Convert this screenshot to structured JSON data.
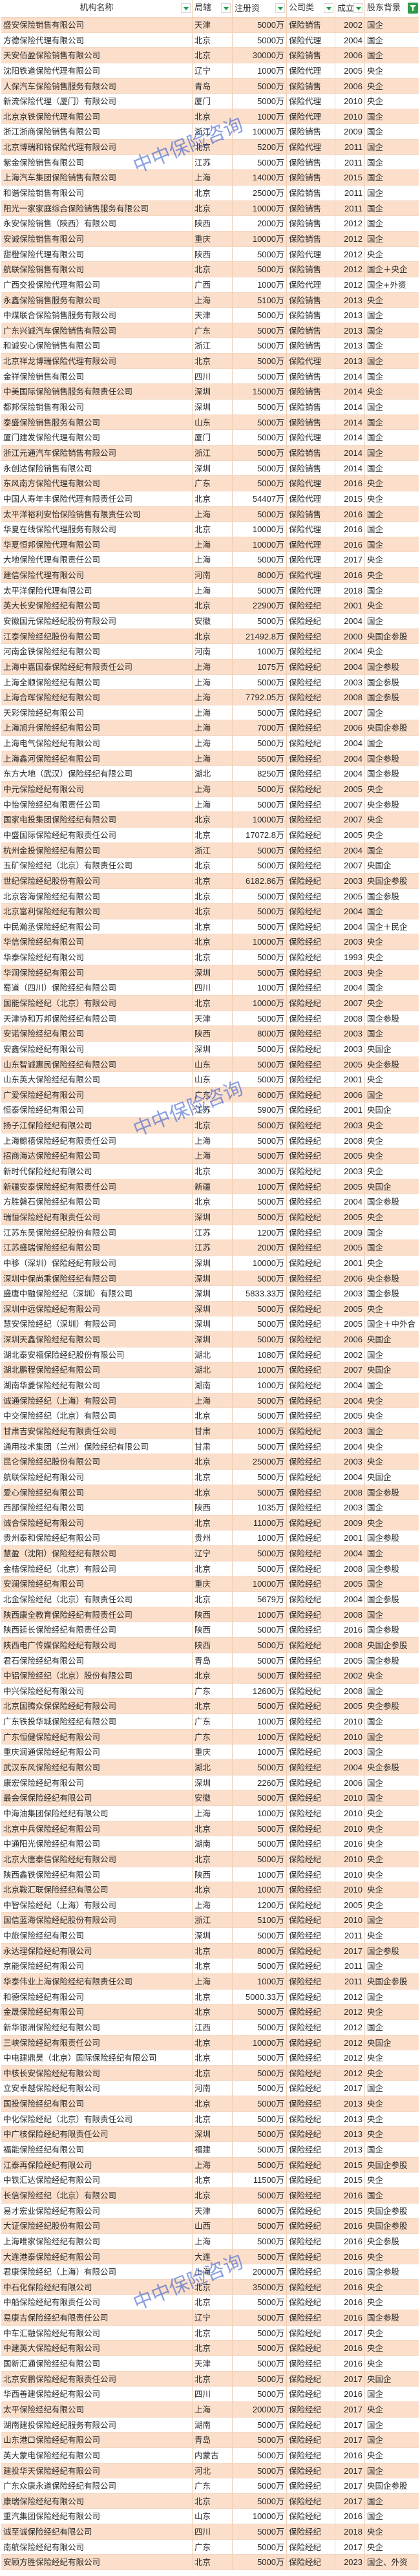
{
  "colors": {
    "row_alt": "#fbdfcb",
    "filter_accent": "#2f9a48",
    "watermark": "#2850c8"
  },
  "header": [
    "机构名称",
    "局辖",
    "注册资",
    "公司类",
    "成立",
    "股东背景"
  ],
  "watermark": "中中保险咨询",
  "rows": [
    [
      "盛安保险销售有限公司",
      "天津",
      "5000万",
      "保险销售",
      "2002",
      "国企"
    ],
    [
      "方德保险代理有限公司",
      "北京",
      "5000万",
      "保险代理",
      "2004",
      "国企"
    ],
    [
      "天安佰盈保险销售有限公司",
      "北京",
      "30000万",
      "保险销售",
      "2006",
      "国企"
    ],
    [
      "沈阳铁道保险代理有限公司",
      "辽宁",
      "1000万",
      "保险代理",
      "2005",
      "央企"
    ],
    [
      "人保汽车保险销售服务有限公司",
      "青岛",
      "5000万",
      "保险销售",
      "2006",
      "央企"
    ],
    [
      "新流保险代理（厦门）有限公司",
      "厦门",
      "5000万",
      "保险代理",
      "2010",
      "央企"
    ],
    [
      "北京京铁保险代理有限公司",
      "北京",
      "1000万",
      "保险代理",
      "2010",
      "国企"
    ],
    [
      "浙江浙商保险销售有限公司",
      "浙江",
      "10000万",
      "保险销售",
      "2009",
      "国企"
    ],
    [
      "北京博瑞和铭保险代理有限公司",
      "北京",
      "5200万",
      "保险代理",
      "2011",
      "国企"
    ],
    [
      "紫金保险销售有限公司",
      "江苏",
      "5000万",
      "保险销售",
      "2011",
      "国企"
    ],
    [
      "上海汽车集团保险销售有限公司",
      "上海",
      "14000万",
      "保险销售",
      "2015",
      "国企"
    ],
    [
      "和谐保险销售有限公司",
      "北京",
      "25000万",
      "保险销售",
      "2011",
      "国企"
    ],
    [
      "阳光一家家庭综合保险销售服务有限公司",
      "北京",
      "10000万",
      "保险销售",
      "2011",
      "国企"
    ],
    [
      "永安保险销售（陕西）有限公司",
      "陕西",
      "2000万",
      "保险销售",
      "2012",
      "国企"
    ],
    [
      "安诚保险销售有限公司",
      "重庆",
      "10000万",
      "保险销售",
      "2012",
      "国企"
    ],
    [
      "甜橙保险代理有限公司",
      "陕西",
      "5000万",
      "保险代理",
      "2012",
      "央企"
    ],
    [
      "航联保险销售有限公司",
      "北京",
      "5000万",
      "保险销售",
      "2012",
      "国企＋央企"
    ],
    [
      "广西交投保险代理有限公司",
      "广西",
      "1000万",
      "保险代理",
      "2012",
      "国企+外资"
    ],
    [
      "永鑫保险销售服务有限公司",
      "上海",
      "5100万",
      "保险销售",
      "2013",
      "央企"
    ],
    [
      "中煤联合保险销售服务有限公司",
      "天津",
      "5000万",
      "保险销售",
      "2013",
      "国企"
    ],
    [
      "广东兴诚汽车保险销售有限公司",
      "广东",
      "5000万",
      "保险销售",
      "2013",
      "国企"
    ],
    [
      "和诚安心保险销售有限公司",
      "浙江",
      "5000万",
      "保险销售",
      "2013",
      "国企"
    ],
    [
      "北京祥龙博瑞保险代理有限公司",
      "北京",
      "5000万",
      "保险代理",
      "2013",
      "国企"
    ],
    [
      "金祥保险销售有限公司",
      "四川",
      "5000万",
      "保险销售",
      "2014",
      "国企"
    ],
    [
      "中美国际保险销售服务有限责任公司",
      "深圳",
      "15000万",
      "保险销售",
      "2014",
      "央企"
    ],
    [
      "都邦保险销售有限公司",
      "深圳",
      "5000万",
      "保险销售",
      "2014",
      "国企"
    ],
    [
      "泰盛保险销售服务有限公司",
      "山东",
      "5000万",
      "保险销售",
      "2014",
      "国企"
    ],
    [
      "厦门建发保险代理有限公司",
      "厦门",
      "5000万",
      "保险代理",
      "2014",
      "国企"
    ],
    [
      "浙江元通汽车保险销售有限公司",
      "浙江",
      "5000万",
      "保险销售",
      "2014",
      "国企"
    ],
    [
      "永创达保险销售有限公司",
      "深圳",
      "5000万",
      "保险销售",
      "2014",
      "国企"
    ],
    [
      "东风南方保险代理有限公司",
      "广东",
      "5000万",
      "保险代理",
      "2016",
      "央企"
    ],
    [
      "中国人寿年丰保险代理有限责任公司",
      "北京",
      "54407万",
      "保险代理",
      "2015",
      "央企"
    ],
    [
      "太平洋裕利安怡保险销售有限责任公司",
      "上海",
      "5000万",
      "保险销售",
      "2016",
      "国企"
    ],
    [
      "华夏在线保险代理服务有限公司",
      "北京",
      "10000万",
      "保险代理",
      "2016",
      "国企"
    ],
    [
      "华夏恒邦保险代理有限公司",
      "上海",
      "10000万",
      "保险代理",
      "2016",
      "国企"
    ],
    [
      "大地保险代理有限责任公司",
      "上海",
      "5000万",
      "保险代理",
      "2017",
      "央企"
    ],
    [
      "建信保险代理有限公司",
      "河南",
      "8000万",
      "保险代理",
      "2016",
      "央企"
    ],
    [
      "太平洋保险代理有限公司",
      "上海",
      "5000万",
      "保险代理",
      "2018",
      "国企"
    ],
    [
      "英大长安保险经纪有限公司",
      "北京",
      "22900万",
      "保险经纪",
      "2001",
      "央企"
    ],
    [
      "安徽国元保险经纪股份有限公司",
      "安徽",
      "5000万",
      "保险经纪",
      "2004",
      "国企"
    ],
    [
      "江泰保险经纪股份有限公司",
      "北京",
      "21492.8万",
      "保险经纪",
      "2000",
      "央国企参股"
    ],
    [
      "河南金铁保险经纪有限公司",
      "河南",
      "1000万",
      "保险经纪",
      "2004",
      "央企"
    ],
    [
      "上海中嘉国泰保险经纪有限责任公司",
      "上海",
      "1075万",
      "保险经纪",
      "2004",
      "国企参股"
    ],
    [
      "上海全顺保险经纪有限公司",
      "上海",
      "5000万",
      "保险经纪",
      "2003",
      "国企参股"
    ],
    [
      "上海合晖保险经纪有限公司",
      "上海",
      "7792.05万",
      "保险经纪",
      "2008",
      "国企参股"
    ],
    [
      "天彩保险经纪有限公司",
      "上海",
      "5000万",
      "保险经纪",
      "2007",
      "国企"
    ],
    [
      "上海旭升保险经纪有限公司",
      "上海",
      "7000万",
      "保险经纪",
      "2006",
      "央国企参股"
    ],
    [
      "上海电气保险经纪有限公司",
      "上海",
      "5000万",
      "保险经纪",
      "2004",
      "国企"
    ],
    [
      "上海鑫河保险经纪有限公司",
      "上海",
      "5500万",
      "保险经纪",
      "2004",
      "国企参股"
    ],
    [
      "东方大地（武汉）保险经纪有限公司",
      "湖北",
      "8250万",
      "保险经纪",
      "2004",
      "国企参股"
    ],
    [
      "中元保险经纪有限公司",
      "上海",
      "5000万",
      "保险经纪",
      "2005",
      "央企"
    ],
    [
      "中怡保险经纪有限责任公司",
      "上海",
      "5000万",
      "保险经纪",
      "2007",
      "央企参股"
    ],
    [
      "国家电投集团保险经纪有限公司",
      "北京",
      "10000万",
      "保险经纪",
      "2007",
      "央企"
    ],
    [
      "中盛国际保险经纪有限责任公司",
      "北京",
      "17072.8万",
      "保险经纪",
      "2005",
      "央企"
    ],
    [
      "杭州金投保险经纪有限公司",
      "浙江",
      "5000万",
      "保险经纪",
      "2004",
      "国企"
    ],
    [
      "五矿保险经纪（北京）有限责任公司",
      "北京",
      "5000万",
      "保险经纪",
      "2007",
      "央国企"
    ],
    [
      "世纪保险经纪股份有限公司",
      "北京",
      "6182.86万",
      "保险经纪",
      "2003",
      "央国企参股"
    ],
    [
      "北京容海保险经纪有限公司",
      "北京",
      "5000万",
      "保险经纪",
      "2005",
      "国企参股"
    ],
    [
      "北京富利保险经纪有限公司",
      "北京",
      "5000万",
      "保险经纪",
      "2004",
      "国企"
    ],
    [
      "中民瀚丞保险经纪有限公司",
      "北京",
      "5000万",
      "保险经纪",
      "2004",
      "国企＋民企"
    ],
    [
      "华信保险经纪有限公司",
      "北京",
      "10000万",
      "保险经纪",
      "2003",
      "央企"
    ],
    [
      "华泰保险经纪有限公司",
      "北京",
      "5000万",
      "保险经纪",
      "1993",
      "央企"
    ],
    [
      "华润保险经纪有限公司",
      "深圳",
      "5000万",
      "保险经纪",
      "2003",
      "央企"
    ],
    [
      "蜀道（四川）保险经纪有限公司",
      "四川",
      "1000万",
      "保险经纪",
      "2004",
      "国企"
    ],
    [
      "国能保险经纪（北京）有限公司",
      "北京",
      "10000万",
      "保险经纪",
      "2007",
      "央企"
    ],
    [
      "天津协和万邦保险经纪有限公司",
      "天津",
      "5000万",
      "保险经纪",
      "2008",
      "国企参股"
    ],
    [
      "安诺保险经纪有限公司",
      "陕西",
      "8000万",
      "保险经纪",
      "2003",
      "国企"
    ],
    [
      "安鑫保险经纪有限公司",
      "深圳",
      "5000万",
      "保险经纪",
      "2003",
      "央国企"
    ],
    [
      "山东智诚惠民保险经纪有限公司",
      "山东",
      "5000万",
      "保险经纪",
      "2005",
      "央企参股"
    ],
    [
      "山东英大保险经纪有限公司",
      "山东",
      "5000万",
      "保险经纪",
      "2001",
      "央企"
    ],
    [
      "广爱保险经纪有限公司",
      "广东",
      "6000万",
      "保险经纪",
      "2006",
      "国企"
    ],
    [
      "恒泰保险经纪有限公司",
      "江苏",
      "5900万",
      "保险经纪",
      "2001",
      "央国企"
    ],
    [
      "扬子江保险经纪有限公司",
      "北京",
      "5000万",
      "保险经纪",
      "2003",
      "央企"
    ],
    [
      "上海鲸禧保险经纪有限责任公司",
      "上海",
      "5000万",
      "保险经纪",
      "2008",
      "央企"
    ],
    [
      "招商海达保险经纪有限公司",
      "上海",
      "5000万",
      "保险经纪",
      "2005",
      "央企"
    ],
    [
      "新时代保险经纪有限公司",
      "北京",
      "3000万",
      "保险经纪",
      "2003",
      "央企"
    ],
    [
      "新疆安泰保险经纪有限责任公司",
      "新疆",
      "1000万",
      "保险经纪",
      "2005",
      "央国企"
    ],
    [
      "方胜磐石保险经纪有限公司",
      "北京",
      "5000万",
      "保险经纪",
      "2004",
      "国企参股"
    ],
    [
      "瑞恒保险经纪有限责任公司",
      "深圳",
      "5000万",
      "保险经纪",
      "2005",
      "央企"
    ],
    [
      "江苏东吴保险经纪股份有限公司",
      "江苏",
      "1200万",
      "保险经纪",
      "2009",
      "国企"
    ],
    [
      "江苏盛瑞保险经纪有限公司",
      "江苏",
      "2000万",
      "保险经纪",
      "2005",
      "国企"
    ],
    [
      "中移（深圳）保险经纪有限公司",
      "深圳",
      "10000万",
      "保险经纪",
      "2001",
      "央企"
    ],
    [
      "深圳中保尚乘保险经纪有限公司",
      "深圳",
      "5000万",
      "保险经纪",
      "2006",
      "央企参股"
    ],
    [
      "盛唐中融保险经纪（深圳）有限公司",
      "深圳",
      "5833.33万",
      "保险经纪",
      "2003",
      "国企参股"
    ],
    [
      "深圳中远保险经纪有限公司",
      "深圳",
      "5000万",
      "保险经纪",
      "2005",
      "央企"
    ],
    [
      "慧安保险经纪（深圳）有限公司",
      "深圳",
      "5000万",
      "保险经纪",
      "2005",
      "国企＋中外合"
    ],
    [
      "深圳天鑫保险经纪有限公司",
      "深圳",
      "5000万",
      "保险经纪",
      "2006",
      "央国企"
    ],
    [
      "湖北泰安福保险经纪股份有限公司",
      "湖北",
      "1080万",
      "保险经纪",
      "2002",
      "国企"
    ],
    [
      "湖北鹏程保险经纪有限公司",
      "湖北",
      "1000万",
      "保险经纪",
      "2007",
      "央国企"
    ],
    [
      "湖南华菱保险经纪有限公司",
      "湖南",
      "1000万",
      "保险经纪",
      "2004",
      "国企"
    ],
    [
      "诚通保险经纪（上海）有限公司",
      "上海",
      "5000万",
      "保险经纪",
      "2004",
      "央企"
    ],
    [
      "中交保险经纪（北京）有限公司",
      "北京",
      "5000万",
      "保险经纪",
      "2005",
      "央企"
    ],
    [
      "甘肃吉安保险经纪有限责任公司",
      "甘肃",
      "1000万",
      "保险经纪",
      "2003",
      "国企"
    ],
    [
      "通用技术集团（兰州）保险经纪有限公司",
      "甘肃",
      "5000万",
      "保险经纪",
      "2004",
      "央企"
    ],
    [
      "昆仑保险经纪股份有限公司",
      "北京",
      "25000万",
      "保险经纪",
      "2003",
      "央企"
    ],
    [
      "航联保险经纪有限公司",
      "北京",
      "5000万",
      "保险经纪",
      "2004",
      "央国企"
    ],
    [
      "爱心保险经纪有限公司",
      "北京",
      "5000万",
      "保险经纪",
      "2008",
      "国企参股"
    ],
    [
      "西部保险经纪有限公司",
      "陕西",
      "1035万",
      "保险经纪",
      "2003",
      "国企"
    ],
    [
      "诚合保险经纪有限公司",
      "北京",
      "11000万",
      "保险经纪",
      "2009",
      "央企"
    ],
    [
      "贵州泰和保险经纪有限公司",
      "贵州",
      "1000万",
      "保险经纪",
      "2001",
      "国企参股"
    ],
    [
      "慧盈（沈阳）保险经纪有限公司",
      "辽宁",
      "5000万",
      "保险经纪",
      "2004",
      "国企"
    ],
    [
      "金桔保险经纪（北京）有限公司",
      "北京",
      "5000万",
      "保险经纪",
      "2008",
      "国企参股"
    ],
    [
      "安澜保险经纪有限公司",
      "重庆",
      "10000万",
      "保险经纪",
      "2005",
      "国企"
    ],
    [
      "北金保险经纪（北京）有限责任公司",
      "北京",
      "5679万",
      "保险经纪",
      "2004",
      "国企参股"
    ],
    [
      "陕西康全教育保险经纪有限责任公司",
      "陕西",
      "1000万",
      "保险经纪",
      "2008",
      "国企"
    ],
    [
      "陕西延长保险经纪有限责任公司",
      "陕西",
      "5000万",
      "保险经纪",
      "2016",
      "国企参股"
    ],
    [
      "陕西电广传媒保险经纪有限公司",
      "陕西",
      "5000万",
      "保险经纪",
      "2008",
      "央国企参股"
    ],
    [
      "君石保险经纪有限公司",
      "青岛",
      "5000万",
      "保险经纪",
      "2005",
      "国企参股"
    ],
    [
      "中铝保险经纪（北京）股份有限公司",
      "北京",
      "5000万",
      "保险经纪",
      "2002",
      "央企"
    ],
    [
      "中兴保险经纪有限公司",
      "广东",
      "12600万",
      "保险经纪",
      "2008",
      "国企"
    ],
    [
      "北京国腾众保保险经纪有限公司",
      "北京",
      "5000万",
      "保险经纪",
      "2005",
      "央企参股"
    ],
    [
      "广东铁投华城保险经纪有限公司",
      "广东",
      "1000万",
      "保险经纪",
      "2010",
      "国企"
    ],
    [
      "广东恒健保险经纪有限公司",
      "广东",
      "1000万",
      "保险经纪",
      "2010",
      "国企"
    ],
    [
      "重庆润通保险经纪有限公司",
      "重庆",
      "1000万",
      "保险经纪",
      "2003",
      "国企"
    ],
    [
      "武汉东风保险经纪有限公司",
      "湖北",
      "5000万",
      "保险经纪",
      "2004",
      "央企参股"
    ],
    [
      "康宏保险经纪有限公司",
      "深圳",
      "2260万",
      "保险经纪",
      "2006",
      "国企"
    ],
    [
      "最会保保险经纪有限公司",
      "安徽",
      "5000万",
      "保险经纪",
      "2010",
      "国企"
    ],
    [
      "中海油集团保险经纪有限公司",
      "上海",
      "1000万",
      "保险经纪",
      "2010",
      "央企"
    ],
    [
      "北京中兵保险经纪有限公司",
      "北京",
      "5000万",
      "保险经纪",
      "2010",
      "央企"
    ],
    [
      "中通阳光保险经纪有限公司",
      "湖南",
      "5000万",
      "保险经纪",
      "2016",
      "央企"
    ],
    [
      "北京大唐泰信保险经纪有限公司",
      "北京",
      "5000万",
      "保险经纪",
      "2010",
      "央企"
    ],
    [
      "陕西鑫铁保险经纪有限公司",
      "陕西",
      "1000万",
      "保险经纪",
      "2010",
      "央企"
    ],
    [
      "北京鞍汇联保险经纪有限公司",
      "北京",
      "1000万",
      "保险经纪",
      "2010",
      "央企"
    ],
    [
      "中智保险经纪（上海）有限公司",
      "上海",
      "1200万",
      "保险经纪",
      "2005",
      "央企"
    ],
    [
      "国信蓝海保险经纪股份有限公司",
      "浙江",
      "5100万",
      "保险经纪",
      "2010",
      "国企"
    ],
    [
      "中旅保险经纪有限公司",
      "深圳",
      "5000万",
      "保险经纪",
      "2011",
      "央企"
    ],
    [
      "永达理保险经纪有限公司",
      "北京",
      "8000万",
      "保险经纪",
      "2017",
      "国企参股"
    ],
    [
      "京能保险经纪有限公司",
      "北京",
      "5000万",
      "保险经纪",
      "2011",
      "国企"
    ],
    [
      "华泰伟业上海保险经纪有限责任公司",
      "上海",
      "1000万",
      "保险经纪",
      "2011",
      "央国企参股"
    ],
    [
      "和德保险经纪有限公司",
      "北京",
      "5000.33万",
      "保险经纪",
      "2012",
      "国企"
    ],
    [
      "金晟保险经纪有限公司",
      "北京",
      "5000万",
      "保险经纪",
      "2012",
      "央企"
    ],
    [
      "新华银洲保险经纪有限公司",
      "江西",
      "5000万",
      "保险经纪",
      "2012",
      "国企"
    ],
    [
      "三峡保险经纪有限责任公司",
      "北京",
      "10000万",
      "保险经纪",
      "2012",
      "央国企"
    ],
    [
      "中电建鼎昊（北京）国际保险经纪有限公司",
      "北京",
      "5000万",
      "保险经纪",
      "2012",
      "央企"
    ],
    [
      "中核长安保险经纪有限公司",
      "北京",
      "5000万",
      "保险经纪",
      "2012",
      "央企"
    ],
    [
      "立安卓越保险经纪有限公司",
      "河南",
      "5000万",
      "保险经纪",
      "2017",
      "国企"
    ],
    [
      "国投保险经纪有限公司",
      "北京",
      "5000万",
      "保险经纪",
      "2013",
      "央企"
    ],
    [
      "中化保险经纪（北京）有限责任公司",
      "北京",
      "5000万",
      "保险经纪",
      "2013",
      "央企"
    ],
    [
      "中广核保险经纪有限责任公司",
      "深圳",
      "5000万",
      "保险经纪",
      "2013",
      "央企"
    ],
    [
      "福能保险经纪有限公司",
      "福建",
      "5000万",
      "保险经纪",
      "2013",
      "国企"
    ],
    [
      "江泰再保险经纪有限公司",
      "上海",
      "5000万",
      "保险经纪",
      "2015",
      "央国企参股"
    ],
    [
      "中铁汇达保险经纪有限公司",
      "北京",
      "11500万",
      "保险经纪",
      "2015",
      "央企"
    ],
    [
      "长信保险经纪（北京）有限公司",
      "北京",
      "5000万",
      "保险经纪",
      "2016",
      "国企"
    ],
    [
      "易才宏业保险经纪有限公司",
      "天津",
      "6000万",
      "保险经纪",
      "2015",
      "央国企参股"
    ],
    [
      "大证保险经纪股份有限公司",
      "山西",
      "5000万",
      "保险经纪",
      "2016",
      "央国企参股"
    ],
    [
      "上海唯家保险经纪有限公司",
      "上海",
      "5000万",
      "保险经纪",
      "2016",
      "央企参股"
    ],
    [
      "大连港泰保险经纪有限公司",
      "大连",
      "5000万",
      "保险经纪",
      "2016",
      "央企"
    ],
    [
      "君康保险经纪（上海）有限公司",
      "上海",
      "20000万",
      "保险经纪",
      "2016",
      "国企参股"
    ],
    [
      "中石化保险经纪有限公司",
      "北京",
      "35000万",
      "保险经纪",
      "2016",
      "央企"
    ],
    [
      "中船保险经纪有限责任公司",
      "北京",
      "5000万",
      "保险经纪",
      "2016",
      "央企"
    ],
    [
      "易康吉保险经纪有限责任公司",
      "辽宁",
      "5000万",
      "保险经纪",
      "2016",
      "国企参股"
    ],
    [
      "中车汇融保险经纪有限公司",
      "北京",
      "5000万",
      "保险经纪",
      "2017",
      "央企"
    ],
    [
      "中建英大保险经纪有限公司",
      "北京",
      "5000万",
      "保险经纪",
      "2016",
      "央企"
    ],
    [
      "国新汇通保险经纪有限公司",
      "天津",
      "5000万",
      "保险经纪",
      "2016",
      "央企"
    ],
    [
      "北京安鹏保险经纪有限责任公司",
      "北京",
      "5000万",
      "保险经纪",
      "2017",
      "央国企"
    ],
    [
      "华西善建保险经纪有限公司",
      "四川",
      "5000万",
      "保险经纪",
      "2016",
      "国企"
    ],
    [
      "太平保险经纪有限公司",
      "上海",
      "20000万",
      "保险经纪",
      "2017",
      "央企"
    ],
    [
      "湖南建投保险经纪服务有限公司",
      "湖南",
      "5000万",
      "保险经纪",
      "2017",
      "国企"
    ],
    [
      "山东港口保险经纪有限公司",
      "青岛",
      "5000万",
      "保险经纪",
      "2017",
      "国企"
    ],
    [
      "英大蒙电保险经纪有限公司",
      "内蒙古",
      "5000万",
      "保险经纪",
      "2016",
      "央企"
    ],
    [
      "建投华天保险经纪有限公司",
      "河北",
      "5000万",
      "保险经纪",
      "2017",
      "国企"
    ],
    [
      "广东众康永道保险经纪有限公司",
      "广东",
      "5000万",
      "保险经纪",
      "2017",
      "央国企参股"
    ],
    [
      "康瑞保险经纪有限公司",
      "北京",
      "5000万",
      "保险经纪",
      "2017",
      "国企"
    ],
    [
      "重汽集团保险经纪有限公司",
      "山东",
      "10000万",
      "保险经纪",
      "2016",
      "国企"
    ],
    [
      "诚至诚保险经纪有限公司",
      "四川",
      "5000万",
      "保险经纪",
      "2018",
      "央企"
    ],
    [
      "南航保险经纪有限公司",
      "广东",
      "5000万",
      "保险经纪",
      "2017",
      "央企"
    ],
    [
      "安顾方胜保险经纪有限公司",
      "北京",
      "5000万",
      "保险经纪",
      "2023",
      "国企、外资"
    ]
  ]
}
